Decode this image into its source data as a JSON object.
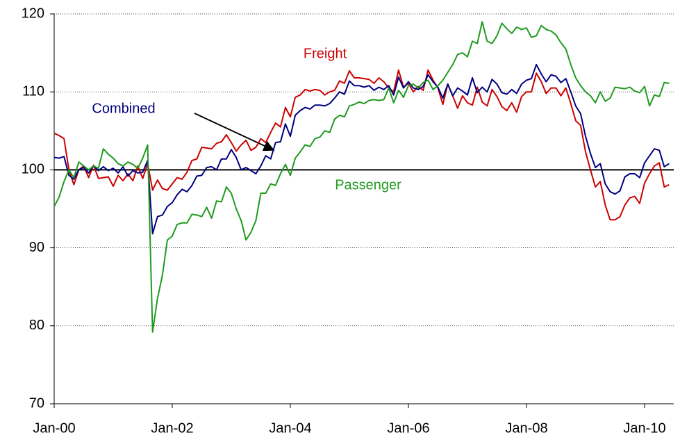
{
  "chart_data": {
    "type": "line",
    "categories": [
      "Jan-00",
      null,
      null,
      null,
      null,
      null,
      null,
      null,
      null,
      null,
      null,
      null,
      null,
      null,
      null,
      null,
      null,
      null,
      null,
      null,
      null,
      null,
      null,
      null,
      "Jan-02",
      null,
      null,
      null,
      null,
      null,
      null,
      null,
      null,
      null,
      null,
      null,
      null,
      null,
      null,
      null,
      null,
      null,
      null,
      null,
      null,
      null,
      null,
      null,
      "Jan-04",
      null,
      null,
      null,
      null,
      null,
      null,
      null,
      null,
      null,
      null,
      null,
      null,
      null,
      null,
      null,
      null,
      null,
      null,
      null,
      null,
      null,
      null,
      null,
      "Jan-06",
      null,
      null,
      null,
      null,
      null,
      null,
      null,
      null,
      null,
      null,
      null,
      null,
      null,
      null,
      null,
      null,
      null,
      null,
      null,
      null,
      null,
      null,
      null,
      "Jan-08",
      null,
      null,
      null,
      null,
      null,
      null,
      null,
      null,
      null,
      null,
      null,
      null,
      null,
      null,
      null,
      null,
      null,
      null,
      null,
      null,
      null,
      null,
      null,
      "Jan-10",
      null,
      null,
      null,
      null,
      null
    ],
    "series": [
      {
        "name": "Freight",
        "color": "#cc0000",
        "values": [
          104.7,
          104.4,
          104,
          100,
          98.1,
          100,
          100.5,
          99,
          100.6,
          98.9,
          99,
          99.1,
          97.9,
          99.3,
          98.6,
          99.5,
          98.6,
          100.5,
          98.9,
          100.8,
          97.4,
          98.7,
          97.6,
          97.4,
          98.2,
          99,
          98.8,
          99.7,
          101.2,
          101.4,
          102.9,
          102.8,
          102.7,
          103.4,
          103.6,
          104.5,
          103.5,
          102.4,
          103.2,
          103.8,
          102.5,
          102.9,
          104,
          103.5,
          104.8,
          106,
          105.5,
          108,
          106.8,
          109.3,
          109.6,
          110.3,
          110.1,
          110.3,
          110.2,
          109.6,
          110,
          110.2,
          111.4,
          111.1,
          112.7,
          111.8,
          111.8,
          111.7,
          111.6,
          111.1,
          111.8,
          111.3,
          110.5,
          110,
          112.8,
          110.6,
          111.1,
          110,
          110.7,
          110.2,
          112.8,
          111.5,
          110.5,
          108.4,
          111,
          109.5,
          107.9,
          109.5,
          108.6,
          108.3,
          110.6,
          108.7,
          108.2,
          110.3,
          109.4,
          108.1,
          107.6,
          108.6,
          107.4,
          109.4,
          110,
          110,
          112.4,
          111.3,
          109.8,
          110.5,
          110.5,
          109.5,
          110.5,
          108.5,
          106.3,
          105.7,
          102.3,
          100,
          97.8,
          98.5,
          95.5,
          93.6,
          93.6,
          94,
          95.5,
          96.4,
          96.6,
          95.7,
          98.3,
          99.5,
          100.5,
          100.9,
          97.8,
          98.1
        ]
      },
      {
        "name": "Combined",
        "color": "#000080",
        "values": [
          101.6,
          101.5,
          101.7,
          99.3,
          98.8,
          100,
          100.3,
          99.6,
          100.5,
          99.9,
          100.4,
          99.9,
          100.2,
          99.6,
          100.4,
          99.2,
          99.9,
          99.6,
          99.7,
          101.2,
          91.8,
          94,
          94.2,
          95.3,
          95.8,
          96.8,
          97.5,
          97.2,
          98,
          99.2,
          99.3,
          100.3,
          100.4,
          100,
          101.4,
          101.4,
          102.6,
          101.6,
          100,
          100.3,
          99.9,
          99.5,
          100.5,
          101.8,
          101.4,
          103.5,
          103.6,
          105.9,
          104.3,
          107,
          107.6,
          108,
          107.8,
          108.3,
          108.3,
          108.2,
          108.5,
          109.2,
          110,
          109.7,
          111.4,
          110.8,
          110.8,
          110.6,
          110.8,
          110.2,
          110.6,
          110.3,
          110.8,
          109.6,
          111.9,
          110.5,
          111.3,
          110.5,
          110.3,
          110.7,
          112.2,
          111.3,
          110.6,
          109.2,
          111,
          109.5,
          110.5,
          110.1,
          109.6,
          111.8,
          109.9,
          110.6,
          110,
          111.6,
          111,
          109.9,
          109.7,
          110.3,
          109.8,
          111,
          111.5,
          111.7,
          113.5,
          112.3,
          111.3,
          112.2,
          112,
          111.2,
          111.7,
          110,
          108.2,
          107.2,
          104.3,
          102.1,
          100.3,
          100.8,
          98.2,
          97.2,
          96.9,
          97.3,
          99.1,
          99.5,
          99.5,
          99,
          100.9,
          101.8,
          102.7,
          102.5,
          100.4,
          100.8
        ]
      },
      {
        "name": "Passenger",
        "color": "#1f9a1f",
        "values": [
          95.3,
          96.5,
          98.5,
          100,
          99,
          101,
          100.5,
          100,
          100.5,
          100.2,
          102.7,
          102,
          101.5,
          100.8,
          100.5,
          101,
          100.7,
          100.2,
          101.5,
          103.2,
          79.2,
          83.5,
          86.5,
          91,
          91.5,
          93,
          93.2,
          93.2,
          94.3,
          94.2,
          94,
          95.2,
          93.8,
          96,
          95.9,
          97.8,
          97,
          95,
          93.5,
          91,
          92,
          93.5,
          97,
          97,
          98.2,
          98,
          99.5,
          100.7,
          99.3,
          101.5,
          102.3,
          103.2,
          103,
          104,
          104.2,
          105,
          104.8,
          106.5,
          107,
          106.8,
          108.2,
          108.4,
          108.7,
          108.5,
          108.9,
          109,
          108.9,
          109,
          110.5,
          108.6,
          110.2,
          109.3,
          110.8,
          111,
          110.5,
          111.2,
          111.5,
          110.3,
          110.8,
          111.5,
          112.5,
          113.5,
          114.8,
          115,
          114.5,
          116.5,
          116.2,
          119,
          116.5,
          116.2,
          117.2,
          118.8,
          118.1,
          117.5,
          118.3,
          118,
          118.2,
          117,
          117.2,
          118.5,
          118,
          117.8,
          117.3,
          116.3,
          115.5,
          113.5,
          111.8,
          110.8,
          110,
          109.5,
          108.6,
          110,
          108.8,
          109.2,
          110.6,
          110.5,
          110.4,
          110.6,
          110.1,
          109.9,
          110.7,
          108.2,
          109.6,
          109.4,
          111.2,
          111.1
        ]
      }
    ],
    "ylim": [
      70,
      120
    ],
    "yticks": [
      70,
      80,
      90,
      100,
      110,
      120
    ],
    "grid": true,
    "reference_line": 100
  }
}
